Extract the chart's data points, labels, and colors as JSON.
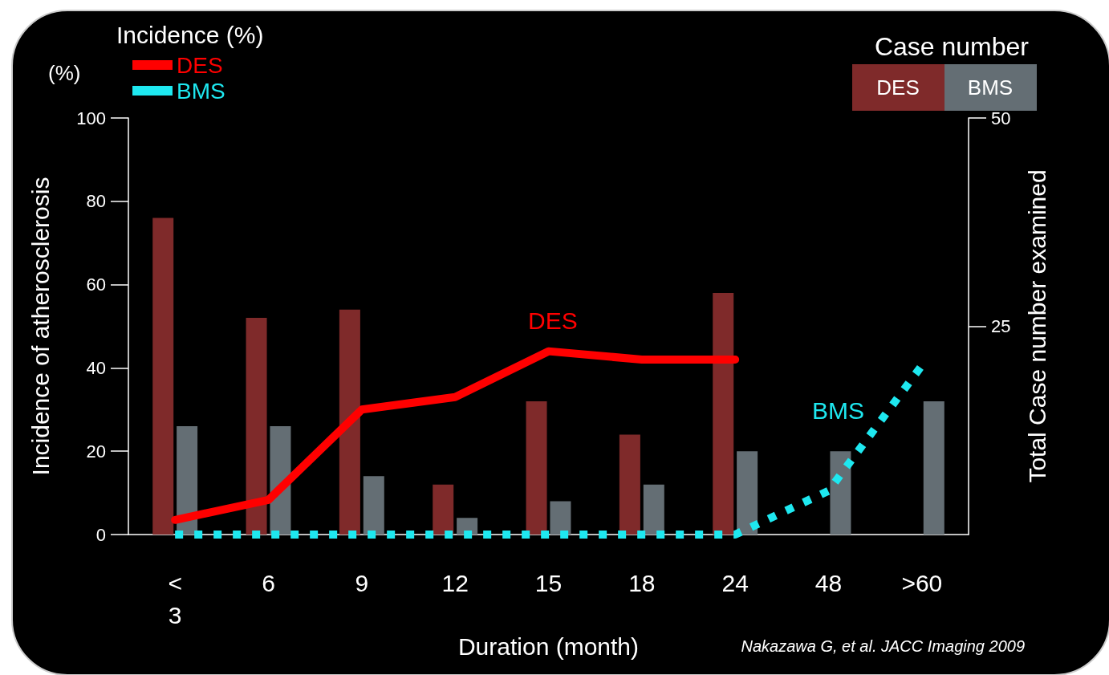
{
  "chart_data": {
    "type": "bar",
    "legend_title": "Incidence (%)",
    "xlabel": "Duration (month)",
    "ylabel": "Incidence of atherosclerosis",
    "y2label": "Total Case number examined",
    "categories": [
      "<\n3",
      "6",
      "9",
      "12",
      "15",
      "18",
      "24",
      "48",
      ">60"
    ],
    "series": [
      {
        "name": "DES",
        "axis": "y2",
        "color": "#7f2a2a",
        "values": [
          38,
          26,
          27,
          6,
          16,
          12,
          29,
          null,
          null
        ]
      },
      {
        "name": "BMS",
        "axis": "y2",
        "color": "#646e74",
        "values": [
          13,
          13,
          7,
          2,
          4,
          6,
          10,
          10,
          16
        ]
      },
      {
        "name": "DES",
        "type": "line",
        "color": "#ff0000",
        "line_style": "solid",
        "values": [
          3.5,
          8.3,
          30,
          33,
          44,
          42,
          42,
          null,
          null
        ]
      },
      {
        "name": "BMS",
        "type": "line",
        "color": "#1ee8f0",
        "line_style": "dotted",
        "values": [
          0,
          0,
          0,
          0,
          0,
          0,
          0,
          10.5,
          40.6
        ]
      }
    ],
    "ylim": [
      0,
      100
    ],
    "yticks": [
      0,
      20,
      40,
      60,
      80,
      100
    ],
    "y2lim": [
      0,
      50
    ],
    "y2ticks": [
      25,
      50
    ],
    "grid": false,
    "legend": "top left",
    "marker": "none",
    "annotations": [
      "(%)",
      "Case number",
      "DES",
      "BMS",
      "Nakazawa G, et al. JACC Imaging 2009"
    ]
  }
}
